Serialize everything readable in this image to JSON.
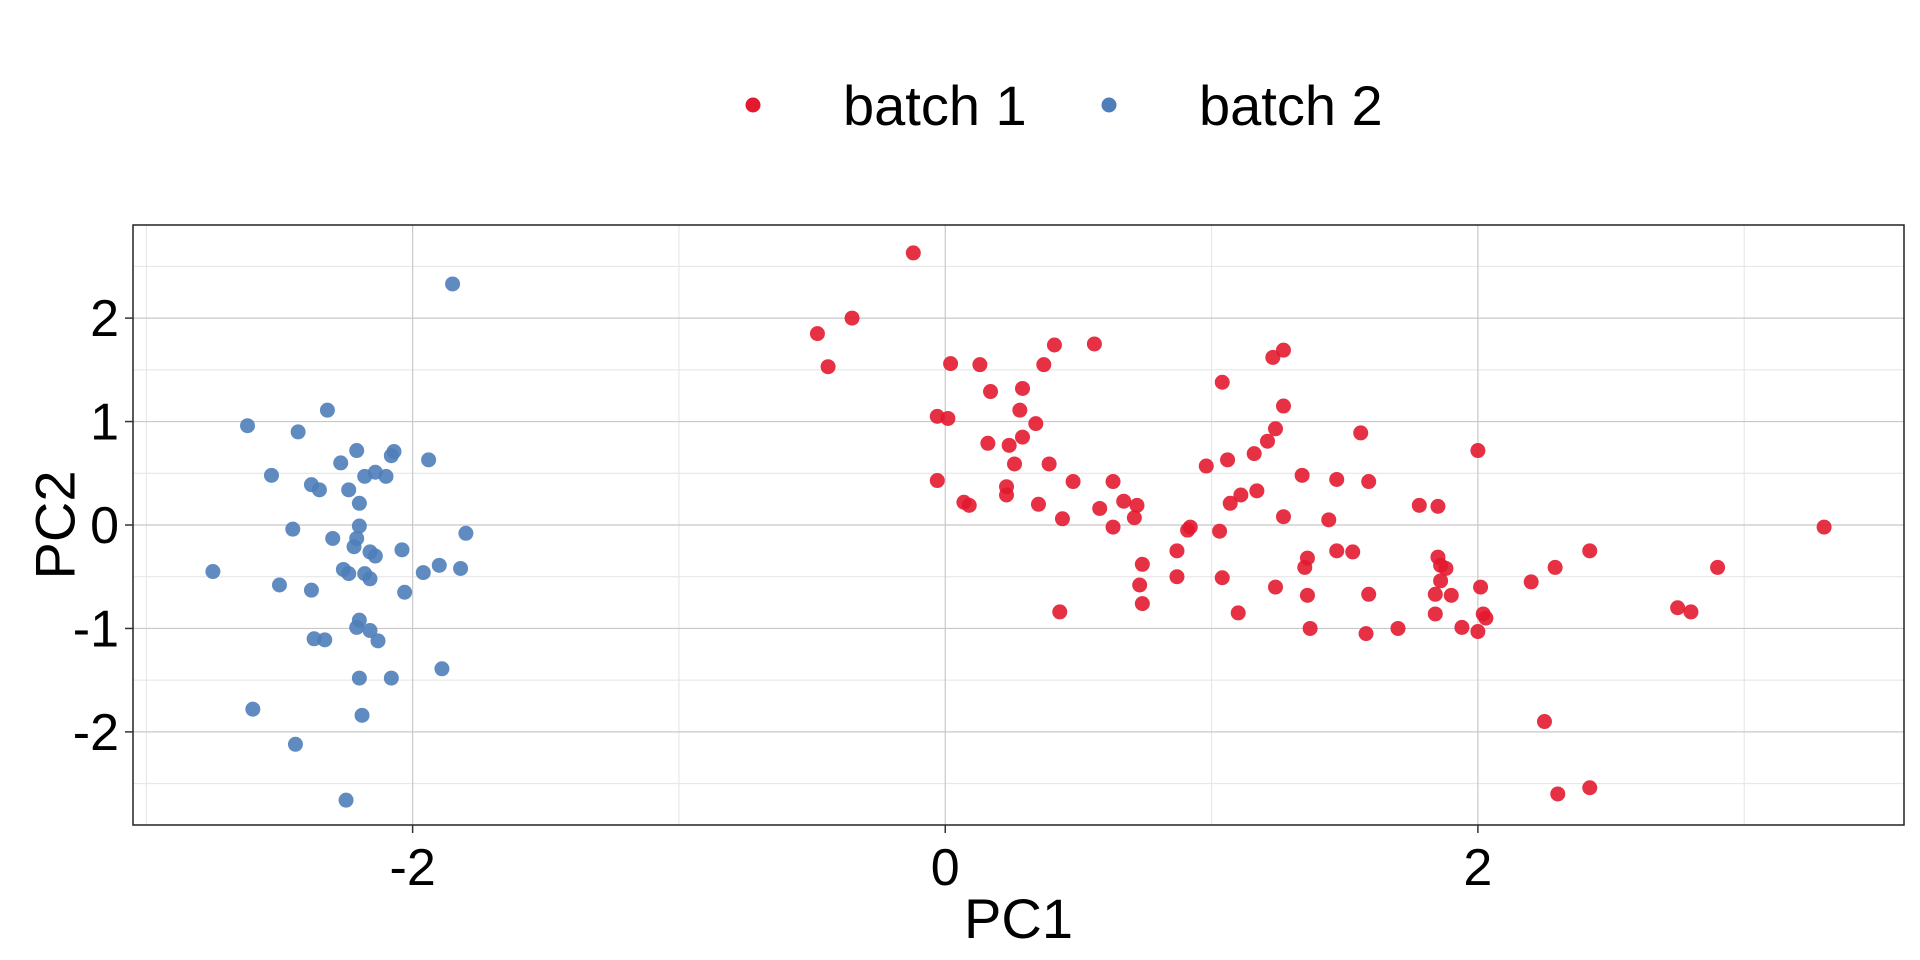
{
  "chart_data": {
    "type": "scatter",
    "xlabel": "PC1",
    "ylabel": "PC2",
    "xlim": [
      -3.05,
      3.6
    ],
    "ylim": [
      -2.9,
      2.9
    ],
    "x_ticks": [
      -2,
      0,
      2
    ],
    "y_ticks": [
      -2,
      -1,
      0,
      1,
      2
    ],
    "x_tick_labels": [
      "-2",
      "0",
      "2"
    ],
    "y_tick_labels": [
      "-2",
      "-1",
      "0",
      "1",
      "2"
    ],
    "grid": true,
    "legend_position": "top",
    "series": [
      {
        "name": "batch 1",
        "color": "#e31a2f",
        "points": [
          [
            -0.12,
            2.63
          ],
          [
            -0.48,
            1.85
          ],
          [
            -0.35,
            2.0
          ],
          [
            -0.44,
            1.53
          ],
          [
            0.02,
            1.56
          ],
          [
            0.13,
            1.55
          ],
          [
            0.37,
            1.55
          ],
          [
            0.41,
            1.74
          ],
          [
            0.56,
            1.75
          ],
          [
            -0.03,
            1.05
          ],
          [
            0.01,
            1.03
          ],
          [
            0.17,
            1.29
          ],
          [
            0.29,
            1.32
          ],
          [
            0.28,
            1.11
          ],
          [
            0.34,
            0.98
          ],
          [
            0.29,
            0.85
          ],
          [
            0.16,
            0.79
          ],
          [
            0.24,
            0.77
          ],
          [
            0.26,
            0.59
          ],
          [
            0.39,
            0.59
          ],
          [
            -0.03,
            0.43
          ],
          [
            0.07,
            0.22
          ],
          [
            0.09,
            0.19
          ],
          [
            0.23,
            0.37
          ],
          [
            0.23,
            0.29
          ],
          [
            0.35,
            0.2
          ],
          [
            0.48,
            0.42
          ],
          [
            0.44,
            0.06
          ],
          [
            0.43,
            -0.84
          ],
          [
            0.58,
            0.16
          ],
          [
            0.63,
            0.42
          ],
          [
            0.67,
            0.23
          ],
          [
            0.72,
            0.19
          ],
          [
            0.71,
            0.07
          ],
          [
            0.63,
            -0.02
          ],
          [
            0.74,
            -0.38
          ],
          [
            0.73,
            -0.58
          ],
          [
            0.74,
            -0.76
          ],
          [
            0.87,
            -0.25
          ],
          [
            0.87,
            -0.5
          ],
          [
            0.92,
            -0.02
          ],
          [
            0.91,
            -0.05
          ],
          [
            0.98,
            0.57
          ],
          [
            1.04,
            1.38
          ],
          [
            1.06,
            0.63
          ],
          [
            1.07,
            0.21
          ],
          [
            1.11,
            0.29
          ],
          [
            1.03,
            -0.06
          ],
          [
            1.04,
            -0.51
          ],
          [
            1.1,
            -0.85
          ],
          [
            1.16,
            0.69
          ],
          [
            1.17,
            0.33
          ],
          [
            1.21,
            0.81
          ],
          [
            1.24,
            0.93
          ],
          [
            1.23,
            1.62
          ],
          [
            1.27,
            1.69
          ],
          [
            1.27,
            1.15
          ],
          [
            1.27,
            0.08
          ],
          [
            1.24,
            -0.6
          ],
          [
            1.34,
            0.48
          ],
          [
            1.35,
            -0.41
          ],
          [
            1.36,
            -0.32
          ],
          [
            1.36,
            -0.68
          ],
          [
            1.37,
            -1.0
          ],
          [
            1.44,
            0.05
          ],
          [
            1.47,
            0.44
          ],
          [
            1.47,
            -0.25
          ],
          [
            1.53,
            -0.26
          ],
          [
            1.56,
            0.89
          ],
          [
            1.59,
            0.42
          ],
          [
            1.59,
            -0.67
          ],
          [
            1.58,
            -1.05
          ],
          [
            1.7,
            -1.0
          ],
          [
            1.78,
            0.19
          ],
          [
            1.85,
            0.18
          ],
          [
            1.84,
            -0.86
          ],
          [
            1.84,
            -0.67
          ],
          [
            1.85,
            -0.31
          ],
          [
            1.86,
            -0.54
          ],
          [
            1.86,
            -0.39
          ],
          [
            1.88,
            -0.42
          ],
          [
            1.9,
            -0.68
          ],
          [
            1.94,
            -0.99
          ],
          [
            2.0,
            0.72
          ],
          [
            2.0,
            -1.03
          ],
          [
            2.01,
            -0.6
          ],
          [
            2.02,
            -0.86
          ],
          [
            2.03,
            -0.9
          ],
          [
            2.2,
            -0.55
          ],
          [
            2.25,
            -1.9
          ],
          [
            2.29,
            -0.41
          ],
          [
            2.3,
            -2.6
          ],
          [
            2.42,
            -0.25
          ],
          [
            2.42,
            -2.54
          ],
          [
            2.75,
            -0.8
          ],
          [
            2.8,
            -0.84
          ],
          [
            2.9,
            -0.41
          ],
          [
            3.3,
            -0.02
          ]
        ]
      },
      {
        "name": "batch 2",
        "color": "#4f7eb9",
        "points": [
          [
            -2.75,
            -0.45
          ],
          [
            -2.62,
            0.96
          ],
          [
            -2.6,
            -1.78
          ],
          [
            -2.53,
            0.48
          ],
          [
            -2.5,
            -0.58
          ],
          [
            -2.45,
            -0.04
          ],
          [
            -2.43,
            0.9
          ],
          [
            -2.44,
            -2.12
          ],
          [
            -2.38,
            0.39
          ],
          [
            -2.38,
            -0.63
          ],
          [
            -2.37,
            -1.1
          ],
          [
            -2.35,
            0.34
          ],
          [
            -2.33,
            -1.11
          ],
          [
            -2.32,
            1.11
          ],
          [
            -2.3,
            -0.13
          ],
          [
            -2.27,
            0.6
          ],
          [
            -2.26,
            -0.43
          ],
          [
            -2.24,
            0.34
          ],
          [
            -2.24,
            -0.47
          ],
          [
            -2.25,
            -2.66
          ],
          [
            -2.22,
            -0.21
          ],
          [
            -2.21,
            -0.13
          ],
          [
            -2.21,
            0.72
          ],
          [
            -2.21,
            -0.99
          ],
          [
            -2.2,
            0.21
          ],
          [
            -2.2,
            -0.01
          ],
          [
            -2.2,
            -0.92
          ],
          [
            -2.2,
            -1.48
          ],
          [
            -2.19,
            -1.84
          ],
          [
            -2.18,
            0.47
          ],
          [
            -2.18,
            -0.47
          ],
          [
            -2.16,
            -0.26
          ],
          [
            -2.16,
            -0.52
          ],
          [
            -2.16,
            -1.02
          ],
          [
            -2.14,
            0.51
          ],
          [
            -2.14,
            -0.3
          ],
          [
            -2.13,
            -1.12
          ],
          [
            -2.1,
            0.47
          ],
          [
            -2.08,
            0.67
          ],
          [
            -2.07,
            0.71
          ],
          [
            -2.08,
            -1.48
          ],
          [
            -2.04,
            -0.24
          ],
          [
            -2.03,
            -0.65
          ],
          [
            -1.96,
            -0.46
          ],
          [
            -1.94,
            0.63
          ],
          [
            -1.9,
            -0.39
          ],
          [
            -1.89,
            -1.39
          ],
          [
            -1.85,
            2.33
          ],
          [
            -1.82,
            -0.42
          ],
          [
            -1.8,
            -0.08
          ]
        ]
      }
    ]
  }
}
